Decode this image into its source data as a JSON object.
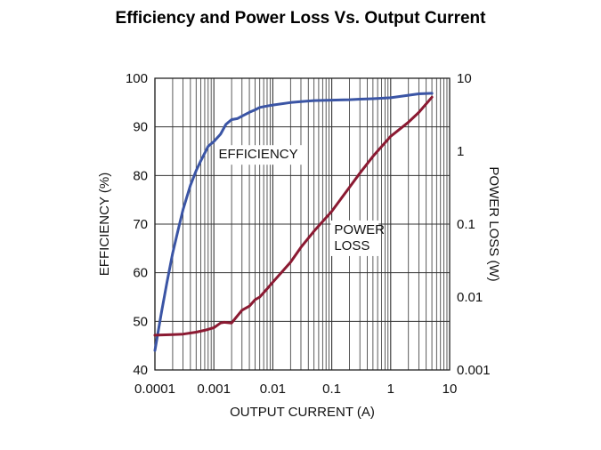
{
  "page": {
    "title": "Efficiency and Power Loss Vs. Output Current"
  },
  "chart_data": {
    "type": "line",
    "title": "Efficiency and Power Loss Vs. Output Current",
    "xlabel": "OUTPUT CURRENT (A)",
    "ylabel": "EFFICIENCY (%)",
    "y2label": "POWER LOSS (W)",
    "x_scale": "log",
    "y2_scale": "log",
    "xlim": [
      0.0001,
      10
    ],
    "ylim": [
      40,
      100
    ],
    "y2lim": [
      0.001,
      10
    ],
    "grid": true,
    "x_ticks": [
      0.0001,
      0.001,
      0.01,
      0.1,
      1,
      10
    ],
    "x_tick_labels": [
      "0.0001",
      "0.001",
      "0.01",
      "0.1",
      "1",
      "10"
    ],
    "y_ticks": [
      40,
      50,
      60,
      70,
      80,
      90,
      100
    ],
    "y_tick_labels": [
      "40",
      "50",
      "60",
      "70",
      "80",
      "90",
      "100"
    ],
    "y2_ticks": [
      0.001,
      0.01,
      0.1,
      1,
      10
    ],
    "y2_tick_labels": [
      "0.001",
      "0.01",
      "0.1",
      "1",
      "10"
    ],
    "annotations": [
      {
        "text_lines": [
          "EFFICIENCY"
        ],
        "x": 0.0012,
        "y": 83.5
      },
      {
        "text_lines": [
          "POWER",
          "LOSS"
        ],
        "x": 0.11,
        "y": 68
      }
    ],
    "series": [
      {
        "axis": "left",
        "color": "#3b55a5",
        "x": [
          0.0001,
          0.00013,
          0.00016,
          0.0002,
          0.00025,
          0.0003,
          0.0004,
          0.0005,
          0.0006,
          0.0008,
          0.001,
          0.0013,
          0.0016,
          0.002,
          0.0025,
          0.003,
          0.004,
          0.005,
          0.006,
          0.008,
          0.01,
          0.02,
          0.03,
          0.05,
          0.1,
          0.2,
          0.3,
          0.5,
          1,
          2,
          3,
          5
        ],
        "y": [
          44,
          52,
          58,
          64,
          69,
          73,
          78,
          81,
          83,
          86,
          87,
          88.5,
          90.5,
          91.5,
          91.7,
          92.2,
          93,
          93.5,
          94,
          94.3,
          94.5,
          95,
          95.2,
          95.4,
          95.5,
          95.6,
          95.7,
          95.8,
          96,
          96.5,
          96.8,
          96.9
        ]
      },
      {
        "axis": "right",
        "color": "#8b1a32",
        "x": [
          0.0001,
          0.0002,
          0.0003,
          0.0005,
          0.0007,
          0.001,
          0.0013,
          0.0015,
          0.002,
          0.0025,
          0.003,
          0.004,
          0.005,
          0.006,
          0.008,
          0.01,
          0.02,
          0.03,
          0.05,
          0.1,
          0.2,
          0.3,
          0.5,
          1,
          2,
          3,
          5
        ],
        "y": [
          0.003,
          0.00305,
          0.0031,
          0.0033,
          0.0035,
          0.0038,
          0.0044,
          0.0045,
          0.0044,
          0.0055,
          0.0066,
          0.0075,
          0.0092,
          0.01,
          0.013,
          0.016,
          0.03,
          0.048,
          0.08,
          0.15,
          0.32,
          0.5,
          0.85,
          1.6,
          2.5,
          3.4,
          5.5
        ]
      }
    ]
  }
}
